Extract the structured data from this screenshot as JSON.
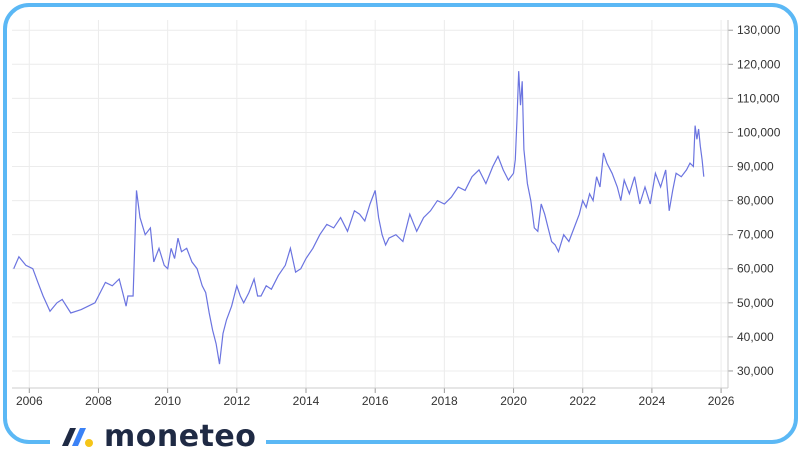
{
  "brand": {
    "name": "moneteo",
    "colors": {
      "frame": "#5bb8f5",
      "logo_blue": "#3b82f6",
      "logo_dark": "#1f2a44",
      "logo_yellow": "#f5c518"
    }
  },
  "chart_data": {
    "type": "line",
    "line_color": "#6b74e0",
    "grid": true,
    "xlim": [
      2005.5,
      2026.2
    ],
    "ylim": [
      25000,
      133000
    ],
    "x_ticks": [
      2006,
      2008,
      2010,
      2012,
      2014,
      2016,
      2018,
      2020,
      2022,
      2024,
      2026
    ],
    "y_ticks": [
      30000,
      40000,
      50000,
      60000,
      70000,
      80000,
      90000,
      100000,
      110000,
      120000,
      130000
    ],
    "x_tick_labels": [
      "2006",
      "2008",
      "2010",
      "2012",
      "2014",
      "2016",
      "2018",
      "2020",
      "2022",
      "2024",
      "2026"
    ],
    "y_tick_labels": [
      "30,000",
      "40,000",
      "50,000",
      "60,000",
      "70,000",
      "80,000",
      "90,000",
      "100,000",
      "110,000",
      "120,000",
      "130,000"
    ],
    "y_axis_side": "right",
    "series": [
      {
        "x": [
          2005.55,
          2005.7,
          2005.9,
          2006.1,
          2006.25,
          2006.4,
          2006.6,
          2006.8,
          2006.95,
          2007.2,
          2007.5,
          2007.7,
          2007.9,
          2008.05,
          2008.2,
          2008.4,
          2008.6,
          2008.7,
          2008.8,
          2008.85,
          2008.9,
          2009.0,
          2009.1,
          2009.2,
          2009.35,
          2009.5,
          2009.6,
          2009.75,
          2009.9,
          2010.0,
          2010.1,
          2010.2,
          2010.3,
          2010.4,
          2010.55,
          2010.7,
          2010.85,
          2011.0,
          2011.1,
          2011.2,
          2011.3,
          2011.4,
          2011.5,
          2011.6,
          2011.7,
          2011.85,
          2012.0,
          2012.1,
          2012.2,
          2012.35,
          2012.5,
          2012.6,
          2012.7,
          2012.85,
          2013.0,
          2013.2,
          2013.4,
          2013.55,
          2013.7,
          2013.85,
          2014.0,
          2014.2,
          2014.4,
          2014.6,
          2014.8,
          2015.0,
          2015.2,
          2015.4,
          2015.55,
          2015.7,
          2015.85,
          2016.0,
          2016.1,
          2016.2,
          2016.3,
          2016.4,
          2016.6,
          2016.8,
          2017.0,
          2017.2,
          2017.4,
          2017.6,
          2017.8,
          2018.0,
          2018.2,
          2018.4,
          2018.6,
          2018.8,
          2019.0,
          2019.2,
          2019.4,
          2019.55,
          2019.7,
          2019.85,
          2020.0,
          2020.05,
          2020.1,
          2020.15,
          2020.2,
          2020.25,
          2020.3,
          2020.4,
          2020.5,
          2020.6,
          2020.7,
          2020.8,
          2020.9,
          2021.0,
          2021.1,
          2021.2,
          2021.3,
          2021.45,
          2021.6,
          2021.75,
          2021.9,
          2022.0,
          2022.1,
          2022.2,
          2022.3,
          2022.4,
          2022.5,
          2022.6,
          2022.7,
          2022.85,
          2023.0,
          2023.1,
          2023.2,
          2023.35,
          2023.5,
          2023.65,
          2023.8,
          2023.95,
          2024.1,
          2024.25,
          2024.4,
          2024.5,
          2024.6,
          2024.7,
          2024.85,
          2025.0,
          2025.1,
          2025.2,
          2025.25,
          2025.3,
          2025.35,
          2025.4,
          2025.45,
          2025.5
        ],
        "y": [
          60000,
          63500,
          61000,
          60000,
          56000,
          52000,
          47500,
          50000,
          51000,
          47000,
          48000,
          49000,
          50000,
          53000,
          56000,
          55000,
          57000,
          53000,
          49000,
          52000,
          52000,
          52000,
          83000,
          75000,
          70000,
          72000,
          62000,
          66000,
          61000,
          60000,
          66000,
          63000,
          69000,
          65000,
          66000,
          62000,
          60000,
          55000,
          53000,
          47000,
          42000,
          38000,
          32000,
          41000,
          45000,
          49000,
          55000,
          52000,
          50000,
          53000,
          57000,
          52000,
          52000,
          55000,
          54000,
          58000,
          61000,
          66000,
          59000,
          60000,
          63000,
          66000,
          70000,
          73000,
          72000,
          75000,
          71000,
          77000,
          76000,
          74000,
          79000,
          83000,
          75000,
          70000,
          67000,
          69000,
          70000,
          68000,
          76000,
          71000,
          75000,
          77000,
          80000,
          79000,
          81000,
          84000,
          83000,
          87000,
          89000,
          85000,
          90000,
          93000,
          89000,
          86000,
          88000,
          92000,
          104000,
          118000,
          108000,
          115000,
          95000,
          85000,
          80000,
          72000,
          71000,
          79000,
          76000,
          72000,
          68000,
          67000,
          65000,
          70000,
          68000,
          72000,
          76000,
          80000,
          78000,
          82000,
          80000,
          87000,
          84000,
          94000,
          91000,
          88000,
          84000,
          80000,
          86000,
          82000,
          87000,
          79000,
          84000,
          79000,
          88000,
          84000,
          89000,
          77000,
          83000,
          88000,
          87000,
          89000,
          91000,
          90000,
          102000,
          98000,
          101000,
          96000,
          92000,
          87000
        ]
      }
    ]
  }
}
